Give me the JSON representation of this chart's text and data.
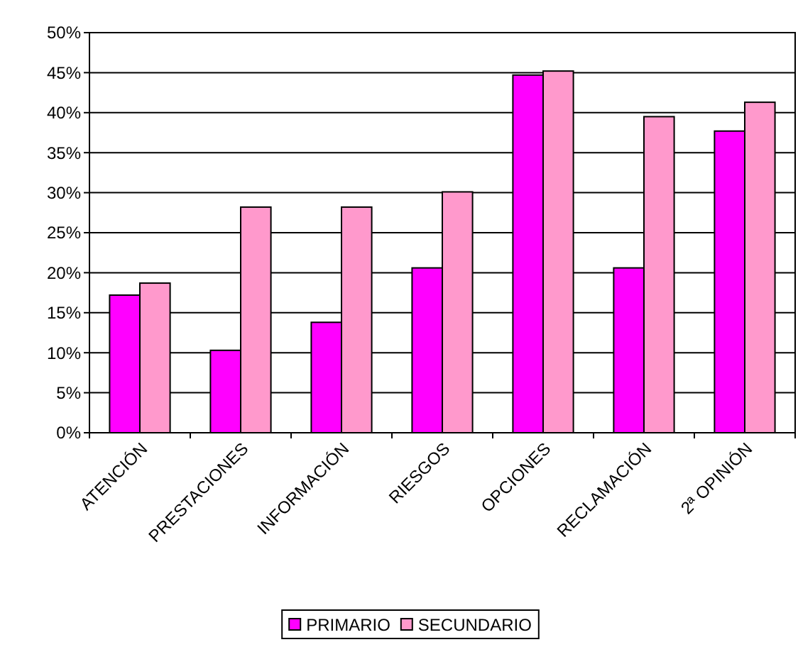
{
  "chart_data": {
    "type": "bar",
    "categories": [
      "ATENCIÓN",
      "PRESTACIONES",
      "INFORMACIÓN",
      "RIESGOS",
      "OPCIONES",
      "RECLAMACIÓN",
      "2ª OPINIÓN"
    ],
    "series": [
      {
        "name": "PRIMARIO",
        "color": "#ff00ff",
        "values": [
          17.2,
          10.3,
          13.8,
          20.6,
          44.7,
          20.6,
          37.7
        ]
      },
      {
        "name": "SECUNDARIO",
        "color": "#ff99cc",
        "values": [
          18.7,
          28.2,
          28.2,
          30.1,
          45.2,
          39.5,
          41.3
        ]
      }
    ],
    "ylim": [
      0,
      50
    ],
    "yticks": [
      {
        "value": 0,
        "label": "0%"
      },
      {
        "value": 5,
        "label": "5%"
      },
      {
        "value": 10,
        "label": "10%"
      },
      {
        "value": 15,
        "label": "15%"
      },
      {
        "value": 20,
        "label": "20%"
      },
      {
        "value": 25,
        "label": "25%"
      },
      {
        "value": 30,
        "label": "30%"
      },
      {
        "value": 35,
        "label": "35%"
      },
      {
        "value": 40,
        "label": "40%"
      },
      {
        "value": 45,
        "label": "45%"
      },
      {
        "value": 50,
        "label": "50%"
      }
    ],
    "grid": "y",
    "legend": "bottom"
  }
}
